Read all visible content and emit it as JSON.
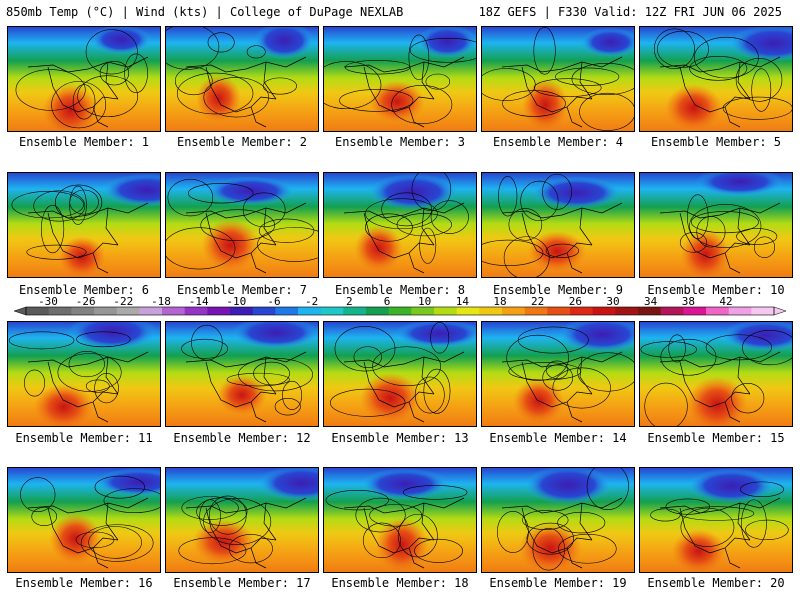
{
  "header": {
    "left_title": "850mb Temp (°C) | Wind (kts) | College of DuPage NEXLAB",
    "right_title": "18Z GEFS | F330 Valid: 12Z FRI JUN 06 2025"
  },
  "panels": [
    {
      "label": "Ensemble Member: 1"
    },
    {
      "label": "Ensemble Member: 2"
    },
    {
      "label": "Ensemble Member: 3"
    },
    {
      "label": "Ensemble Member: 4"
    },
    {
      "label": "Ensemble Member: 5"
    },
    {
      "label": "Ensemble Member: 6"
    },
    {
      "label": "Ensemble Member: 7"
    },
    {
      "label": "Ensemble Member: 8"
    },
    {
      "label": "Ensemble Member: 9"
    },
    {
      "label": "Ensemble Member: 10"
    },
    {
      "label": "Ensemble Member: 11"
    },
    {
      "label": "Ensemble Member: 12"
    },
    {
      "label": "Ensemble Member: 13"
    },
    {
      "label": "Ensemble Member: 14"
    },
    {
      "label": "Ensemble Member: 15"
    },
    {
      "label": "Ensemble Member: 16"
    },
    {
      "label": "Ensemble Member: 17"
    },
    {
      "label": "Ensemble Member: 18"
    },
    {
      "label": "Ensemble Member: 19"
    },
    {
      "label": "Ensemble Member: 20"
    }
  ],
  "colorbar": {
    "tick_labels": [
      "-30",
      "-26",
      "-22",
      "-18",
      "-14",
      "-10",
      "-6",
      "-2",
      "2",
      "6",
      "10",
      "14",
      "18",
      "22",
      "26",
      "30",
      "34",
      "38",
      "42"
    ],
    "colors": [
      "#5a5a5a",
      "#6e6e6e",
      "#828282",
      "#969696",
      "#aaaaaa",
      "#c8a0dc",
      "#b464d2",
      "#9632c8",
      "#7814b4",
      "#3c1eb4",
      "#2846d2",
      "#1e78e6",
      "#1eb4f0",
      "#1ec8c8",
      "#14b48c",
      "#14a050",
      "#3cb428",
      "#78c81e",
      "#b4dc14",
      "#e6e614",
      "#f0c814",
      "#f5a014",
      "#f07814",
      "#e65014",
      "#dc2814",
      "#c81414",
      "#a01414",
      "#781414",
      "#b4145a",
      "#dc1496",
      "#f064c8",
      "#f0a0e6",
      "#f5c8f0"
    ]
  }
}
